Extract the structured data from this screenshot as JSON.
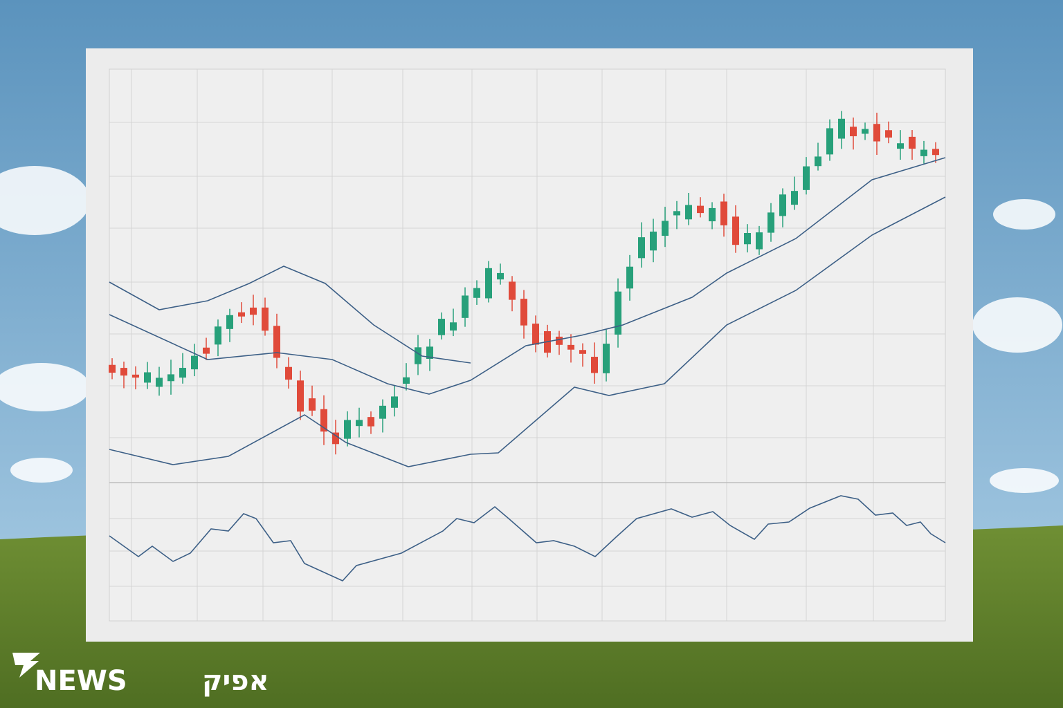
{
  "logo": {
    "latin": "NEWS",
    "hebrew": "אפיק"
  }
}
